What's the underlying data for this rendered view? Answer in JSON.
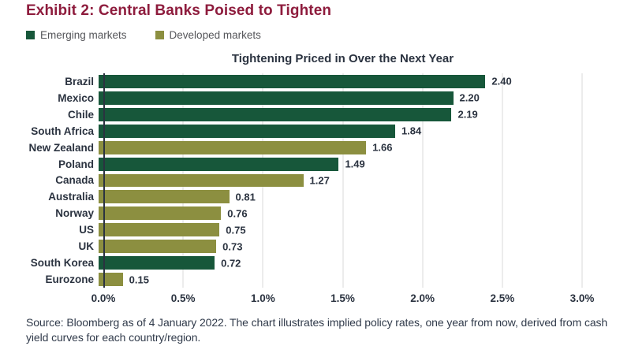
{
  "header": {
    "title": "Exhibit 2: Central Banks Poised to Tighten"
  },
  "legend": {
    "items": [
      {
        "label": "Emerging markets",
        "color": "#17573a"
      },
      {
        "label": "Developed markets",
        "color": "#8c8f40"
      }
    ]
  },
  "chart_data": {
    "type": "bar",
    "orientation": "horizontal",
    "title": "Tightening Priced in Over the Next Year",
    "categories": [
      "Brazil",
      "Mexico",
      "Chile",
      "South Africa",
      "New Zealand",
      "Poland",
      "Canada",
      "Australia",
      "Norway",
      "US",
      "UK",
      "South Korea",
      "Eurozone"
    ],
    "values": [
      2.4,
      2.2,
      2.19,
      1.84,
      1.66,
      1.49,
      1.27,
      0.81,
      0.76,
      0.75,
      0.73,
      0.72,
      0.15
    ],
    "value_labels": [
      "2.40",
      "2.20",
      "2.19",
      "1.84",
      "1.66",
      "1.49",
      "1.27",
      "0.81",
      "0.76",
      "0.75",
      "0.73",
      "0.72",
      "0.15"
    ],
    "series_membership": [
      "Emerging markets",
      "Emerging markets",
      "Emerging markets",
      "Emerging markets",
      "Developed markets",
      "Emerging markets",
      "Developed markets",
      "Developed markets",
      "Developed markets",
      "Developed markets",
      "Developed markets",
      "Emerging markets",
      "Developed markets"
    ],
    "x_ticks": [
      "0.0%",
      "0.5%",
      "1.0%",
      "1.5%",
      "2.0%",
      "2.5%",
      "3.0%"
    ],
    "xlim": [
      0,
      3.0
    ],
    "grid": true,
    "legend_position": "top-left"
  },
  "colors": {
    "emerging": "#17573a",
    "developed": "#8c8f40",
    "exhibit_title": "#8e1c3d",
    "axis_text": "#2b3340",
    "legend_text": "#55565a",
    "gridline": "#d9d9d9"
  },
  "footer": {
    "source": "Source: Bloomberg as of 4 January 2022. The chart illustrates implied policy rates, one year from now, derived from cash yield curves for each country/region."
  }
}
